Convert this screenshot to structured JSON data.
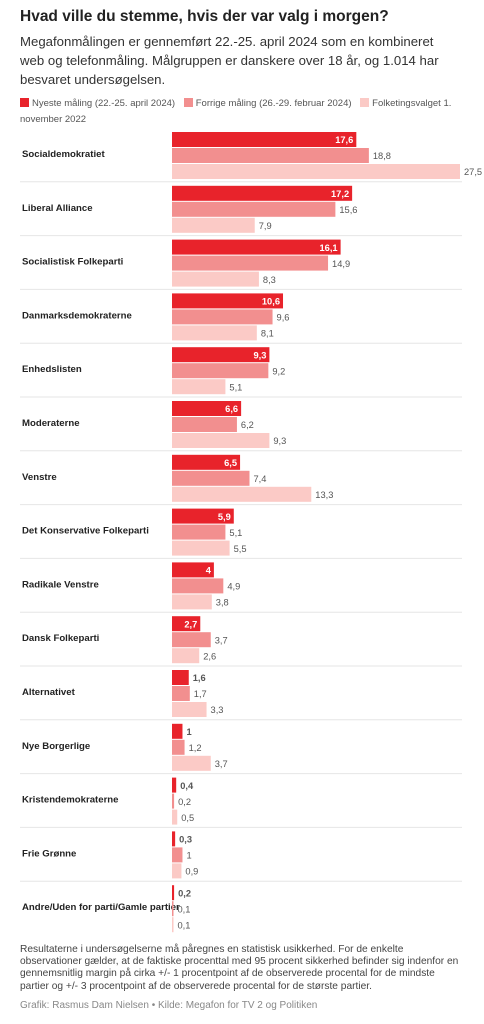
{
  "header": {
    "title": "Hvad ville du stemme, hvis der var valg i morgen?",
    "subtitle": "Megafonmålingen er gennemført 22.-25. april 2024 som en kombineret web og telefonmåling. Målgruppen er danskere over 18 år, og 1.014 har besvaret undersøgelsen."
  },
  "legend": [
    {
      "label": "Nyeste måling (22.-25. april 2024)",
      "color": "#e8232b"
    },
    {
      "label": "Forrige måling (26.-29. februar 2024)",
      "color": "#f28f8f"
    },
    {
      "label": "Folketingsvalget 1. november 2022",
      "color": "#fbcac6"
    }
  ],
  "chart_data": {
    "type": "bar",
    "orientation": "horizontal",
    "categories": [
      "Socialdemokratiet",
      "Liberal Alliance",
      "Socialistisk Folkeparti",
      "Danmarksdemokraterne",
      "Enhedslisten",
      "Moderaterne",
      "Venstre",
      "Det Konservative Folkeparti",
      "Radikale Venstre",
      "Dansk Folkeparti",
      "Alternativet",
      "Nye Borgerlige",
      "Kristendemokraterne",
      "Frie Grønne",
      "Andre/Uden for parti/Gamle partier"
    ],
    "series": [
      {
        "name": "Nyeste måling (22.-25. april 2024)",
        "color": "#e8232b",
        "values": [
          17.6,
          17.2,
          16.1,
          10.6,
          9.3,
          6.6,
          6.5,
          5.9,
          4,
          2.7,
          1.6,
          1,
          0.4,
          0.3,
          0.2
        ],
        "labels": [
          "17,6",
          "17,2",
          "16,1",
          "10,6",
          "9,3",
          "6,6",
          "6,5",
          "5,9",
          "4",
          "2,7",
          "1,6",
          "1",
          "0,4",
          "0,3",
          "0,2"
        ]
      },
      {
        "name": "Forrige måling (26.-29. februar 2024)",
        "color": "#f28f8f",
        "values": [
          18.8,
          15.6,
          14.9,
          9.6,
          9.2,
          6.2,
          7.4,
          5.1,
          4.9,
          3.7,
          1.7,
          1.2,
          0.2,
          1,
          0.1
        ],
        "labels": [
          "18,8",
          "15,6",
          "14,9",
          "9,6",
          "9,2",
          "6,2",
          "7,4",
          "5,1",
          "4,9",
          "3,7",
          "1,7",
          "1,2",
          "0,2",
          "1",
          "0,1"
        ]
      },
      {
        "name": "Folketingsvalget 1. november 2022",
        "color": "#fbcac6",
        "values": [
          27.5,
          7.9,
          8.3,
          8.1,
          5.1,
          9.3,
          13.3,
          5.5,
          3.8,
          2.6,
          3.3,
          3.7,
          0.5,
          0.9,
          0.1
        ],
        "labels": [
          "27,5",
          "7,9",
          "8,3",
          "8,1",
          "5,1",
          "9,3",
          "13,3",
          "5,5",
          "3,8",
          "2,6",
          "3,3",
          "3,7",
          "0,5",
          "0,9",
          "0,1"
        ]
      }
    ],
    "xlim": [
      0,
      27.5
    ],
    "grid": false,
    "legend_position": "top-left"
  },
  "footer": {
    "note": "Resultaterne i undersøgelserne må påregnes en statistisk usikkerhed. For de enkelte observationer gælder, at de faktiske procenttal med 95 procent sikkerhed befinder sig indenfor en gennemsnitlig margin på cirka +/- 1 procentpoint af de observerede procental for de mindste partier og +/- 3 procentpoint af de observerede procental for de største partier.",
    "source": "Grafik: Rasmus Dam Nielsen • Kilde: Megafon for TV 2 og Politiken"
  }
}
